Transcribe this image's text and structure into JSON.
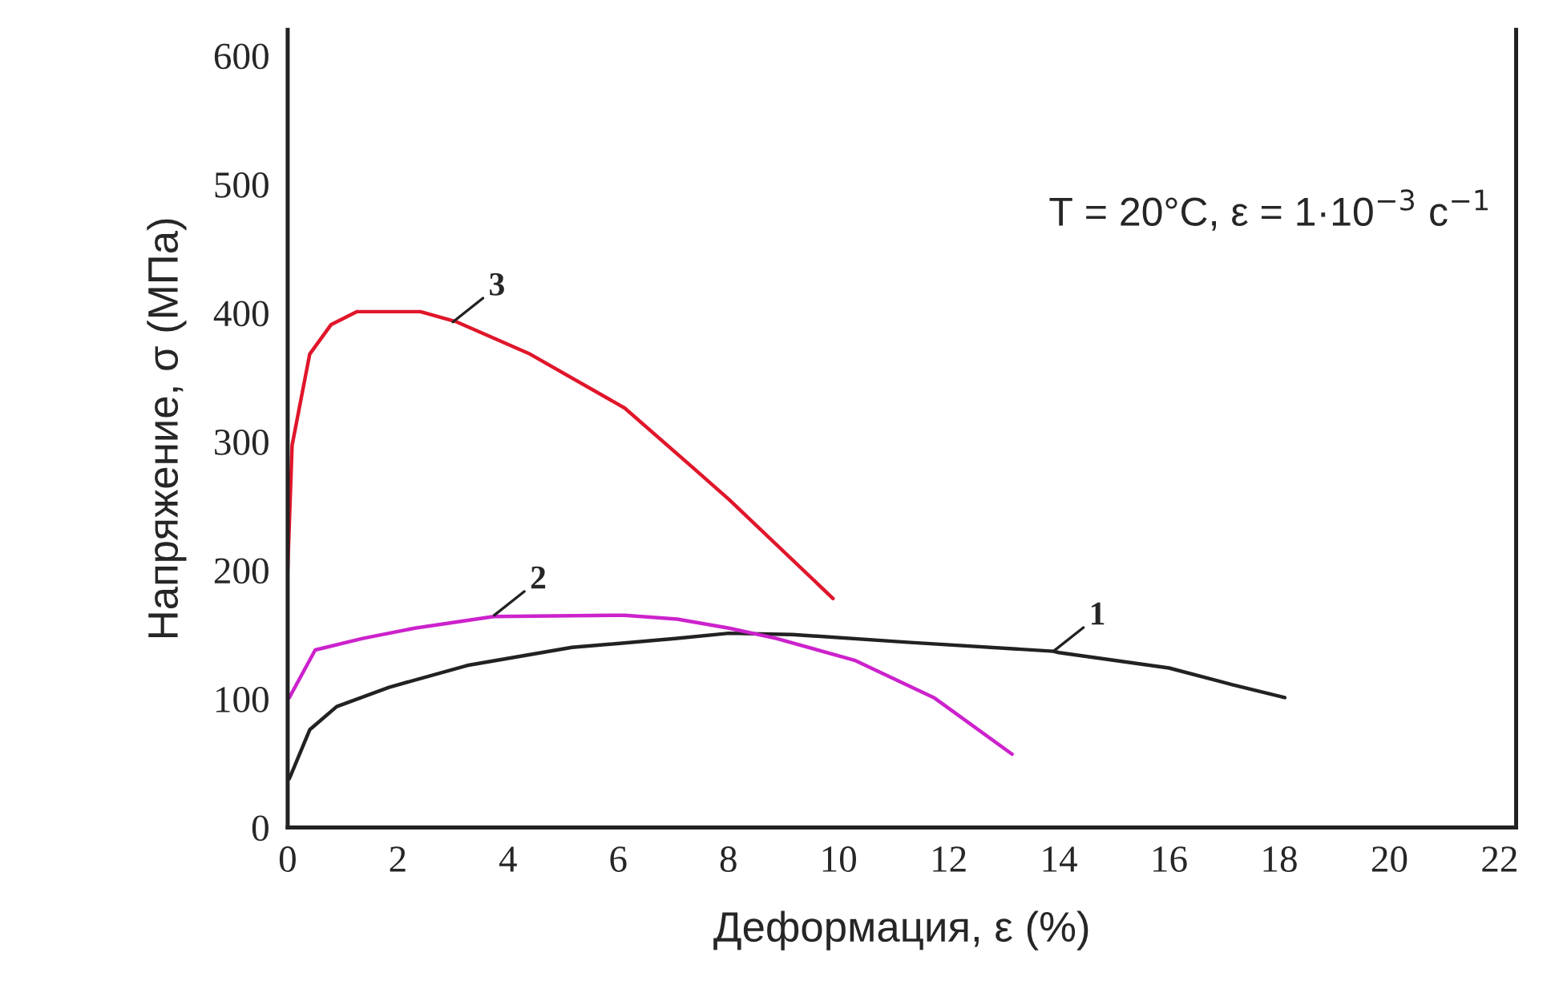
{
  "chart_data": {
    "type": "line",
    "xlabel": "Деформация, ε (%)",
    "ylabel": "Напряжение, σ (МПа)",
    "xlim": [
      0,
      22.3
    ],
    "ylim": [
      0,
      620
    ],
    "xticks": [
      0,
      2,
      4,
      6,
      8,
      10,
      12,
      14,
      16,
      18,
      20,
      22
    ],
    "yticks": [
      0,
      100,
      200,
      300,
      400,
      500,
      600
    ],
    "grid": false,
    "marker": "none",
    "line_style": "solid",
    "series": [
      {
        "color": "#222222",
        "x": [
          0.03,
          0.4,
          0.89,
          1.84,
          3.26,
          5.16,
          7.07,
          8.01,
          9.16,
          11.25,
          13.9,
          14.0,
          16.0,
          17.15,
          18.1
        ],
        "values": [
          38,
          76,
          94,
          109,
          126,
          140,
          147,
          151,
          150,
          144,
          137,
          136,
          124,
          111,
          101
        ]
      },
      {
        "color": "#cc22cc",
        "x": [
          0.03,
          0.5,
          1.36,
          2.31,
          3.74,
          6.12,
          7.07,
          8.01,
          8.87,
          10.29,
          11.73,
          13.15
        ],
        "values": [
          101,
          138,
          147,
          155,
          164,
          165,
          162,
          155,
          147,
          130,
          101,
          57
        ]
      },
      {
        "color": "#e0162b",
        "x": [
          0.0,
          0.08,
          0.4,
          0.79,
          1.26,
          2.41,
          3.07,
          4.4,
          6.12,
          7.35,
          8.01,
          9.9
        ],
        "values": [
          200,
          297,
          368,
          391,
          401,
          401,
          393,
          368,
          326,
          280,
          255,
          178
        ]
      }
    ],
    "annotations": [
      {
        "text": "1",
        "x": 13.9,
        "y": 137
      },
      {
        "text": "2",
        "x": 3.75,
        "y": 165
      },
      {
        "text": "3",
        "x": 3.0,
        "y": 393
      },
      "T = 20°C, ε = 1·10$^{−3}$ с$^{−1}$"
    ]
  }
}
